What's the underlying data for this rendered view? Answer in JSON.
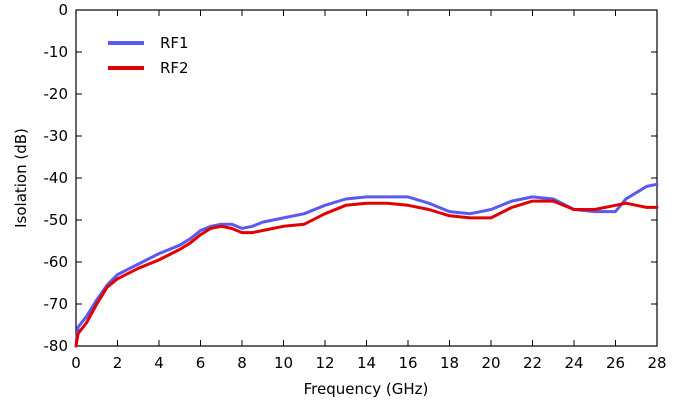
{
  "chart_data": {
    "type": "line",
    "xlabel": "Frequency (GHz)",
    "ylabel": "Isolation (dB)",
    "xlim": [
      0,
      28
    ],
    "ylim": [
      -80,
      0
    ],
    "xticks": [
      0,
      2,
      4,
      6,
      8,
      10,
      12,
      14,
      16,
      18,
      20,
      22,
      24,
      26,
      28
    ],
    "yticks": [
      0,
      -10,
      -20,
      -30,
      -40,
      -50,
      -60,
      -70,
      -80
    ],
    "grid": false,
    "legend_position": "top-left",
    "series": [
      {
        "name": "RF1",
        "color": "#5a5af0",
        "x": [
          0,
          0.1,
          0.5,
          1,
          1.5,
          2,
          3,
          4,
          5,
          5.5,
          6,
          6.5,
          7,
          7.5,
          8,
          8.5,
          9,
          9.5,
          10,
          11,
          12,
          13,
          14,
          15,
          16,
          17,
          18,
          19,
          20,
          21,
          22,
          23,
          24,
          25,
          26,
          26.5,
          27,
          27.5,
          28
        ],
        "y": [
          -80,
          -75.5,
          -73,
          -69,
          -65.5,
          -63,
          -60.5,
          -58,
          -56,
          -54.5,
          -52.5,
          -51.5,
          -51,
          -51,
          -52,
          -51.5,
          -50.5,
          -50,
          -49.5,
          -48.5,
          -46.5,
          -45,
          -44.5,
          -44.5,
          -44.5,
          -46,
          -48,
          -48.5,
          -47.5,
          -45.5,
          -44.5,
          -45,
          -47.5,
          -48,
          -48,
          -45,
          -43.5,
          -42,
          -41.5
        ]
      },
      {
        "name": "RF2",
        "color": "#e00000",
        "x": [
          0,
          0.1,
          0.5,
          1,
          1.5,
          2,
          3,
          4,
          5,
          5.5,
          6,
          6.5,
          7,
          7.5,
          8,
          8.5,
          9,
          9.5,
          10,
          11,
          12,
          13,
          14,
          15,
          16,
          17,
          18,
          19,
          20,
          21,
          22,
          23,
          24,
          25,
          26,
          26.5,
          27,
          27.5,
          28
        ],
        "y": [
          -80,
          -77,
          -74.5,
          -70,
          -66,
          -64,
          -61.5,
          -59.5,
          -57,
          -55.5,
          -53.5,
          -52,
          -51.5,
          -52,
          -53,
          -53,
          -52.5,
          -52,
          -51.5,
          -51,
          -48.5,
          -46.5,
          -46,
          -46,
          -46.5,
          -47.5,
          -49,
          -49.5,
          -49.5,
          -47,
          -45.5,
          -45.5,
          -47.5,
          -47.5,
          -46.5,
          -46,
          -46.5,
          -47,
          -47
        ]
      }
    ]
  }
}
